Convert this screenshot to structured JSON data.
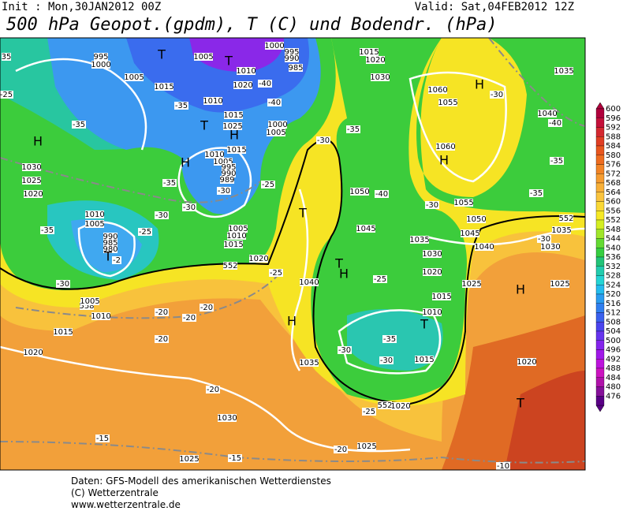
{
  "header": {
    "init": "Init : Mon,30JAN2012 00Z",
    "valid": "Valid: Sat,04FEB2012 12Z",
    "title": "500 hPa Geopot.(gpdm), T (C) und Bodendr. (hPa)"
  },
  "colorbar": {
    "levels": [
      600,
      596,
      592,
      588,
      584,
      580,
      576,
      572,
      568,
      564,
      560,
      556,
      552,
      548,
      544,
      540,
      536,
      532,
      528,
      524,
      520,
      516,
      512,
      508,
      504,
      500,
      496,
      492,
      488,
      484,
      480,
      476
    ],
    "colors": [
      "#b0003c",
      "#c4103a",
      "#d42830",
      "#e03e24",
      "#e8561e",
      "#ee6c20",
      "#f28426",
      "#f69c30",
      "#f8b038",
      "#fac43e",
      "#fad836",
      "#f6e826",
      "#d4ee22",
      "#a0e62a",
      "#64da32",
      "#36ce40",
      "#22c478",
      "#22ccae",
      "#24d4d4",
      "#24bcee",
      "#2a9cf0",
      "#307ef0",
      "#3a60ee",
      "#4a44ee",
      "#6634ee",
      "#8424ec",
      "#a018e8",
      "#bc14dc",
      "#cc14c0",
      "#b012aa",
      "#86109a",
      "#5a0086"
    ]
  },
  "map_labels": [
    "35",
    "995",
    "1000",
    "T",
    "1005",
    "T",
    "995",
    "990",
    "985",
    "1000",
    "1015",
    "1020",
    "1030",
    "1005",
    "1010",
    "H",
    "1060",
    "1055",
    "-30",
    "1035",
    "-25",
    "1015",
    "1010",
    "1020",
    "-40",
    "-40",
    "-35",
    "1040",
    "-40",
    "1015",
    "1025",
    "H",
    "T",
    "1000",
    "1005",
    "-35",
    "-35",
    "-30",
    "H",
    "1015",
    "1010",
    "1005",
    "995",
    "990",
    "989",
    "H",
    "1060",
    "H",
    "-35",
    "1030",
    "1025",
    "-35",
    "-30",
    "-25",
    "1020",
    "1050",
    "-40",
    "-35",
    "-30",
    "-30",
    "1010",
    "1005",
    "T",
    "-30",
    "1055",
    "1050",
    "1045",
    "-35",
    "-25",
    "1045",
    "1005",
    "1010",
    "1015",
    "1035",
    "1040",
    "552",
    "1035",
    "-30",
    "1030",
    "990",
    "985",
    "980",
    "T",
    "-2",
    "1020",
    "1030",
    "T",
    "H",
    "552",
    "1020",
    "-25",
    "1040",
    "-25",
    "-30",
    "1025",
    "1025",
    "H",
    "1015",
    "558",
    "1005",
    "-20",
    "-20",
    "-20",
    "H",
    "1010",
    "T",
    "1010",
    "1015",
    "-20",
    "-35",
    "-30",
    "-30",
    "1020",
    "1035",
    "1015",
    "1020",
    "-20",
    "T",
    "-25",
    "1020",
    "552",
    "1030",
    "-15",
    "1025",
    "-20",
    "1025",
    "-15",
    "-10"
  ],
  "footer": [
    "Daten: GFS-Modell des amerikanischen Wetterdienstes",
    "(C) Wetterzentrale",
    "www.wetterzentrale.de"
  ]
}
